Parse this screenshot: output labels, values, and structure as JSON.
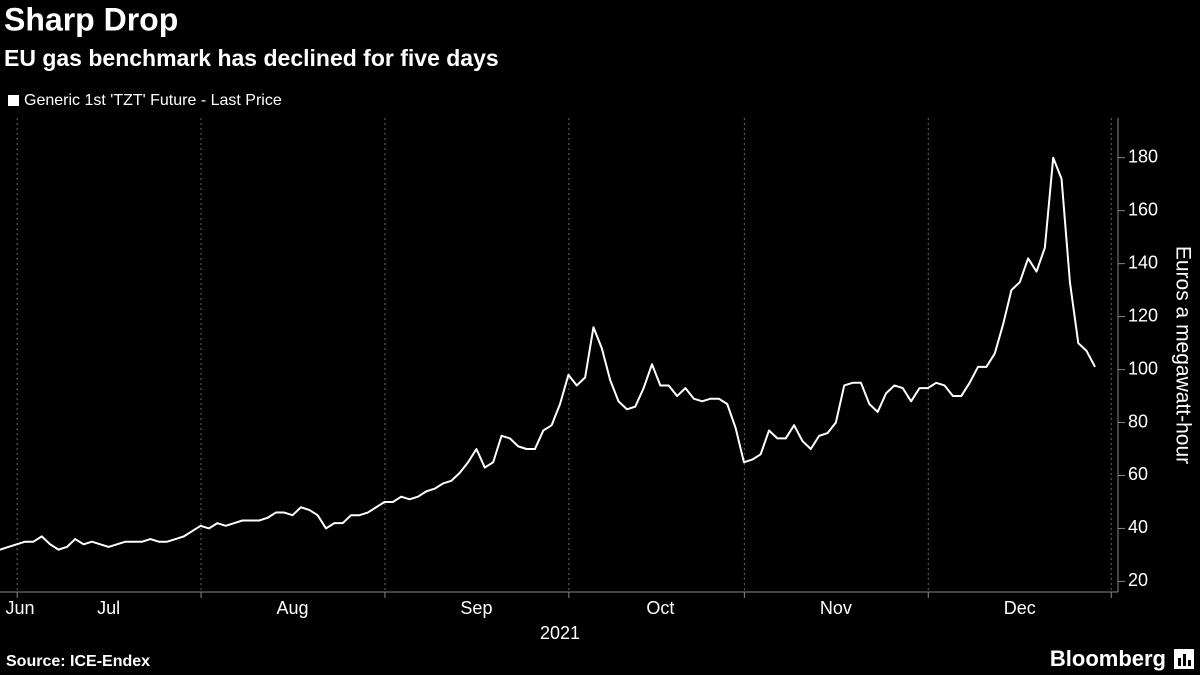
{
  "chart_data": {
    "type": "line",
    "title": "Sharp Drop",
    "subtitle": "EU gas benchmark has declined for five days",
    "ylabel": "Euros a megawatt-hour",
    "xlabel": "2021",
    "source": "Source: ICE-Endex",
    "brand": "Bloomberg",
    "categories": [
      null,
      null,
      "Jun",
      null,
      null,
      null,
      null,
      null,
      null,
      null,
      null,
      null,
      null,
      "Jul",
      null,
      null,
      null,
      null,
      null,
      null,
      null,
      null,
      null,
      null,
      null,
      null,
      null,
      null,
      null,
      null,
      null,
      null,
      null,
      null,
      null,
      "Aug",
      null,
      null,
      null,
      null,
      null,
      null,
      null,
      null,
      null,
      null,
      null,
      null,
      null,
      null,
      null,
      null,
      null,
      null,
      null,
      null,
      null,
      "Sep",
      null,
      null,
      null,
      null,
      null,
      null,
      null,
      null,
      null,
      null,
      null,
      null,
      null,
      null,
      null,
      null,
      null,
      null,
      null,
      null,
      null,
      "Oct",
      null,
      null,
      null,
      null,
      null,
      null,
      null,
      null,
      null,
      null,
      null,
      null,
      null,
      null,
      null,
      null,
      null,
      null,
      null,
      null,
      "Nov",
      null,
      null,
      null,
      null,
      null,
      null,
      null,
      null,
      null,
      null,
      null,
      null,
      null,
      null,
      null,
      null,
      null,
      null,
      null,
      null,
      null,
      "Dec",
      null,
      null,
      null,
      null,
      null,
      null,
      null,
      null,
      null
    ],
    "series": [
      {
        "name": "Generic 1st 'TZT' Future - Last Price",
        "color": "#ffffff",
        "values": [
          32,
          33,
          34,
          35,
          35,
          37,
          34,
          32,
          33,
          36,
          34,
          35,
          34,
          33,
          34,
          35,
          35,
          35,
          36,
          35,
          35,
          36,
          37,
          39,
          41,
          40,
          42,
          41,
          42,
          43,
          43,
          43,
          44,
          46,
          46,
          45,
          48,
          47,
          45,
          40,
          42,
          42,
          45,
          45,
          46,
          48,
          50,
          50,
          52,
          51,
          52,
          54,
          55,
          57,
          58,
          61,
          65,
          70,
          63,
          65,
          75,
          74,
          71,
          70,
          70,
          77,
          79,
          87,
          98,
          94,
          97,
          116,
          108,
          96,
          88,
          85,
          86,
          93,
          102,
          94,
          94,
          90,
          93,
          89,
          88,
          89,
          89,
          87,
          78,
          65,
          66,
          68,
          77,
          74,
          74,
          79,
          73,
          70,
          75,
          76,
          80,
          94,
          95,
          95,
          87,
          84,
          91,
          94,
          93,
          88,
          93,
          93,
          95,
          94,
          90,
          90,
          95,
          101,
          101,
          106,
          117,
          130,
          133,
          142,
          137,
          146,
          180,
          172,
          133,
          110,
          107,
          101
        ]
      }
    ],
    "ylim": [
      16,
      195
    ],
    "yticks": [
      20,
      40,
      60,
      80,
      100,
      120,
      140,
      160,
      180
    ],
    "grid": true
  }
}
